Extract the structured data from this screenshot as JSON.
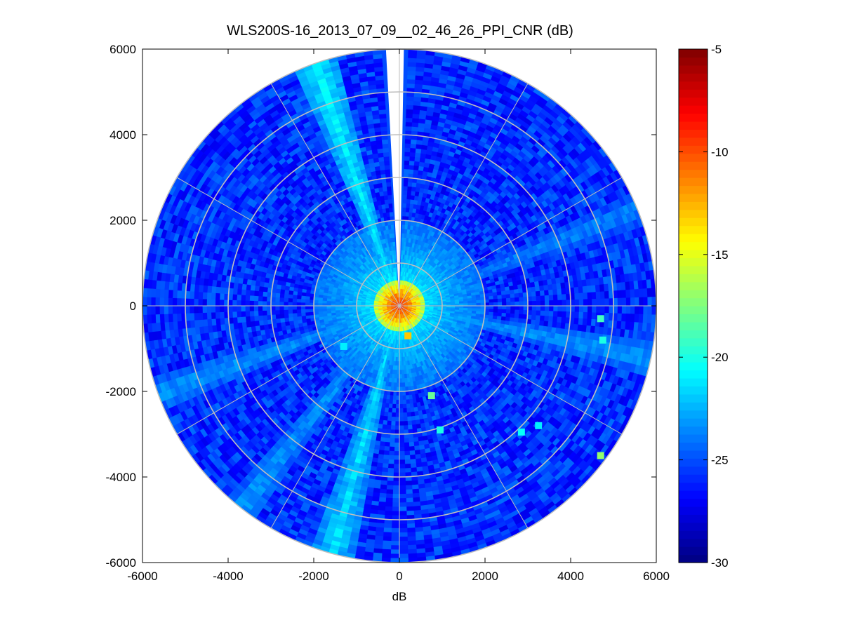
{
  "chart_data": {
    "type": "heatmap",
    "subtype": "polar-ppi",
    "title": "WLS200S-16_2013_07_09__02_46_26_PPI_CNR (dB)",
    "xlabel": "dB",
    "ylabel": "",
    "xlim": [
      -6000,
      6000
    ],
    "ylim": [
      -6000,
      6000
    ],
    "x_ticks": [
      -6000,
      -4000,
      -2000,
      0,
      2000,
      4000,
      6000
    ],
    "x_tick_labels": [
      "-6000",
      "-4000",
      "-2000",
      "0",
      "2000",
      "4000",
      "6000"
    ],
    "y_ticks": [
      -6000,
      -4000,
      -2000,
      0,
      2000,
      4000,
      6000
    ],
    "y_tick_labels": [
      "-6000",
      "-4000",
      "-2000",
      "0",
      "2000",
      "4000",
      "6000"
    ],
    "polar_grid": {
      "ring_radii": [
        1000,
        2000,
        3000,
        4000,
        5000,
        6000
      ],
      "spoke_angles_deg": [
        0,
        30,
        60,
        90,
        120,
        150,
        180,
        210,
        240,
        270,
        300,
        330
      ],
      "color": "#bebebe"
    },
    "max_range": 6000,
    "colorbar": {
      "colormap": "jet",
      "range": [
        -30,
        -5
      ],
      "ticks": [
        -30,
        -25,
        -20,
        -15,
        -10,
        -5
      ],
      "tick_labels": [
        "-30",
        "-25",
        "-20",
        "-15",
        "-10",
        "-5"
      ],
      "levels": 64
    },
    "field_description": {
      "near_range_peak_db": -9,
      "near_range_radius": 600,
      "halo_radius": 2000,
      "background_db": -25,
      "missing_sector_azimuth_deg": [
        357,
        1
      ]
    },
    "radial_beams": [
      {
        "azimuth_deg": 341,
        "value_db": -21,
        "label": "bright beam NNW"
      },
      {
        "azimuth_deg": 195,
        "value_db": -21.5,
        "label": "bright beam SSW"
      },
      {
        "azimuth_deg": 250,
        "value_db": -23,
        "label": "bright beam WSW"
      },
      {
        "azimuth_deg": 218,
        "value_db": -23,
        "label": "beam SW"
      },
      {
        "azimuth_deg": 102,
        "value_db": -23,
        "label": "beam ESE"
      },
      {
        "azimuth_deg": 68,
        "value_db": -23.5,
        "label": "beam ENE"
      }
    ],
    "hot_spots": [
      {
        "x": 4700,
        "y": -300,
        "value_db": -19
      },
      {
        "x": 4750,
        "y": -800,
        "value_db": -20
      },
      {
        "x": 4700,
        "y": -3500,
        "value_db": -17
      },
      {
        "x": 2850,
        "y": -2950,
        "value_db": -20.5
      },
      {
        "x": 3250,
        "y": -2800,
        "value_db": -21
      },
      {
        "x": 750,
        "y": -2100,
        "value_db": -18
      },
      {
        "x": 950,
        "y": -2900,
        "value_db": -20
      },
      {
        "x": -1300,
        "y": -950,
        "value_db": -21
      },
      {
        "x": 200,
        "y": -700,
        "value_db": -13
      }
    ]
  }
}
